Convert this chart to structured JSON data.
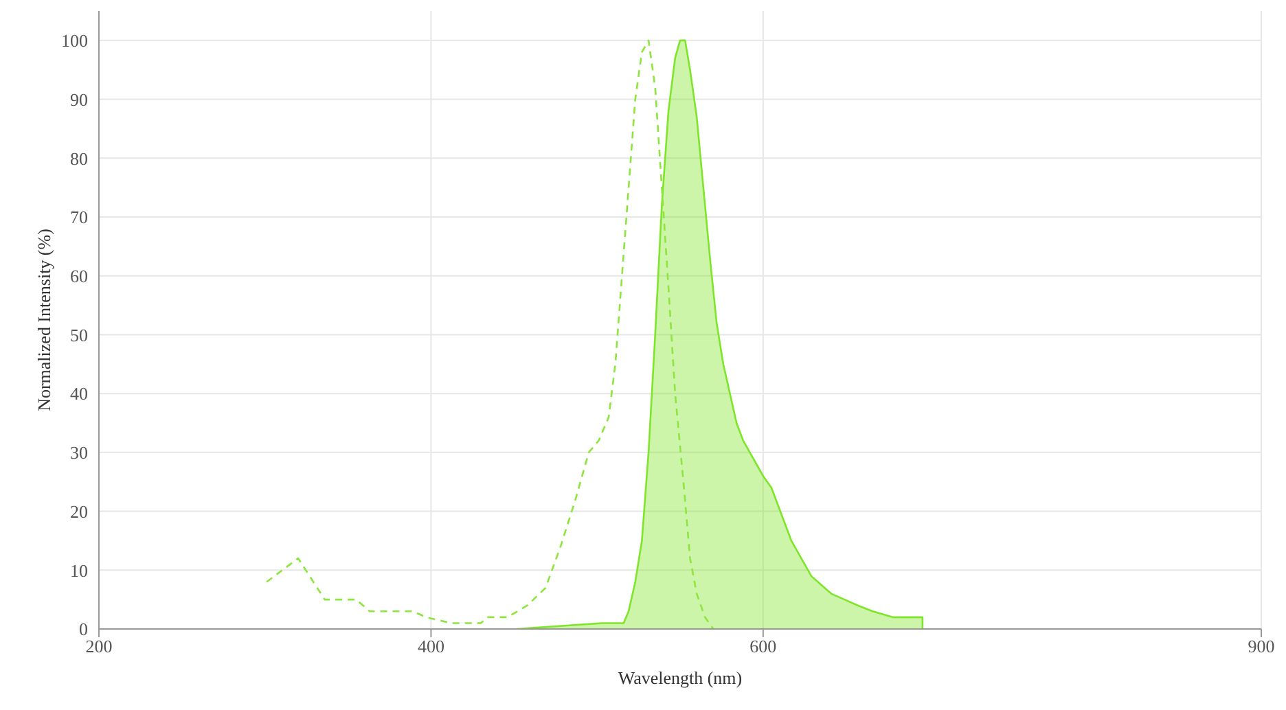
{
  "chart_data": {
    "type": "line",
    "xlabel": "Wavelength (nm)",
    "ylabel": "Normalized Intensity (%)",
    "xlim": [
      200,
      900
    ],
    "xticks": [
      200,
      400,
      600,
      900
    ],
    "ylim": [
      0,
      105
    ],
    "yticks": [
      0,
      10,
      20,
      30,
      40,
      50,
      60,
      70,
      80,
      90,
      100
    ],
    "grid": true,
    "marker": "none",
    "series": [
      {
        "line_style": "dashed",
        "color": "#8ee53f",
        "x": [
          301,
          320,
          336,
          355,
          363,
          389,
          397,
          412,
          430,
          434,
          446,
          458,
          469,
          478,
          487,
          495,
          501,
          507,
          511,
          515,
          519,
          523,
          527,
          531,
          535,
          539,
          543,
          547,
          552,
          556,
          560,
          565,
          570
        ],
        "values": [
          8,
          12,
          5,
          5,
          3,
          3,
          2,
          1,
          1,
          2,
          2,
          4,
          7,
          14,
          22,
          30,
          32,
          36,
          45,
          60,
          75,
          90,
          98,
          100,
          92,
          75,
          58,
          40,
          25,
          12,
          6,
          2,
          0
        ]
      },
      {
        "type": "area",
        "line_style": "solid",
        "color": "#7fe52a",
        "x": [
          452,
          503,
          516,
          519,
          523,
          527,
          531,
          535,
          539,
          543,
          547,
          550,
          553,
          556,
          560,
          564,
          568,
          572,
          576,
          580,
          584,
          588,
          592,
          596,
          600,
          605,
          609,
          613,
          617,
          621,
          625,
          629,
          633,
          637,
          641,
          649,
          657,
          666,
          678,
          696,
          696
        ],
        "values": [
          0,
          1,
          1,
          3,
          8,
          15,
          30,
          50,
          72,
          88,
          97,
          100,
          100,
          95,
          87,
          75,
          63,
          52,
          45,
          40,
          35,
          32,
          30,
          28,
          26,
          24,
          21,
          18,
          15,
          13,
          11,
          9,
          8,
          7,
          6,
          5,
          4,
          3,
          2,
          2,
          0
        ]
      }
    ]
  }
}
